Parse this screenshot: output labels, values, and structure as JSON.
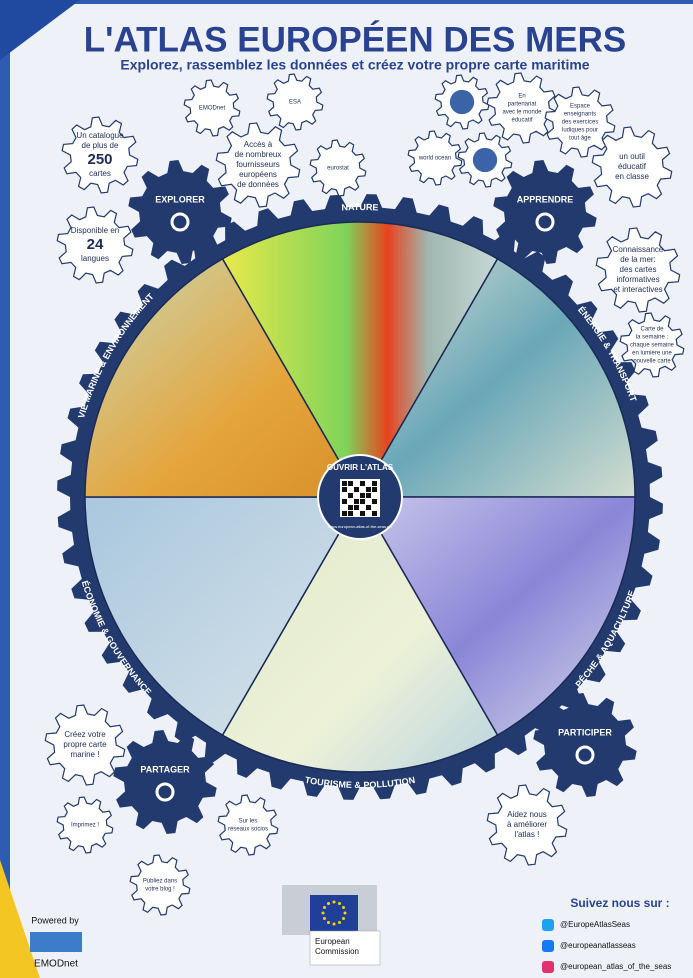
{
  "header": {
    "title": "L'ATLAS EUROPÉEN DES MERS",
    "subtitle": "Explorez, rassemblez les données et créez votre propre carte maritime"
  },
  "wheel": {
    "center_title": "OUVRIR L'ATLAS",
    "center_url": "www.european-atlas-of-the-seas.eu",
    "sectors": [
      "NATURE",
      "ÉNERGIE & TRANSPORT",
      "PÊCHE & AQUACULTURE",
      "TOURISME & POLLUTION",
      "ÉCONOMIE & GOUVERNANCE",
      "VIE MARINE & ENVIRONNEMENT"
    ]
  },
  "actions": [
    "EXPLORER",
    "APPRENDRE",
    "PARTICIPER",
    "PARTAGER"
  ],
  "bubbles": [
    {
      "lines": [
        "Un catalogue",
        "de plus de",
        "250",
        "cartes"
      ]
    },
    {
      "lines": [
        "Disponible en",
        "24",
        "langues"
      ]
    },
    {
      "lines": [
        "EMODnet"
      ]
    },
    {
      "lines": [
        "ESA"
      ]
    },
    {
      "lines": [
        "Accès à",
        "de nombreux",
        "fournisseurs",
        "européens",
        "de données"
      ]
    },
    {
      "lines": [
        "eurostat"
      ]
    },
    {
      "lines": []
    },
    {
      "lines": [
        "En",
        "partenariat",
        "avec le monde",
        "éducatif"
      ]
    },
    {
      "lines": [
        "Espace",
        "enseignants",
        "des exercices",
        "ludiques pour",
        "tout âge"
      ]
    },
    {
      "lines": [
        "world ocean"
      ]
    },
    {
      "lines": []
    },
    {
      "lines": [
        "un outil",
        "éducatif",
        "en classe"
      ]
    },
    {
      "lines": [
        "Connaissance",
        "de la mer:",
        "des cartes",
        "informatives",
        "et interactives"
      ]
    },
    {
      "lines": [
        "Carte de",
        "la semaine :",
        "chaque semaine",
        "en lumière une",
        "nouvelle carte"
      ]
    },
    {
      "lines": [
        "Créez votre",
        "propre carte",
        "marine !"
      ]
    },
    {
      "lines": [
        "Imprimez !"
      ]
    },
    {
      "lines": [
        "Sur les",
        "réseaux socios"
      ]
    },
    {
      "lines": [
        "Publiez dans",
        "votre blog !"
      ]
    },
    {
      "lines": [
        "Aidez nous",
        "à améliorer",
        "l'atlas !"
      ]
    }
  ],
  "footer": {
    "powered_by": "Powered by",
    "emodnet": "EMODnet",
    "commission": [
      "European",
      "Commission"
    ],
    "follow": "Suivez nous sur :",
    "handles": [
      "@EuropeAtlasSeas",
      "@europeanatlasseas",
      "@european_atlas_of_the_seas"
    ]
  }
}
